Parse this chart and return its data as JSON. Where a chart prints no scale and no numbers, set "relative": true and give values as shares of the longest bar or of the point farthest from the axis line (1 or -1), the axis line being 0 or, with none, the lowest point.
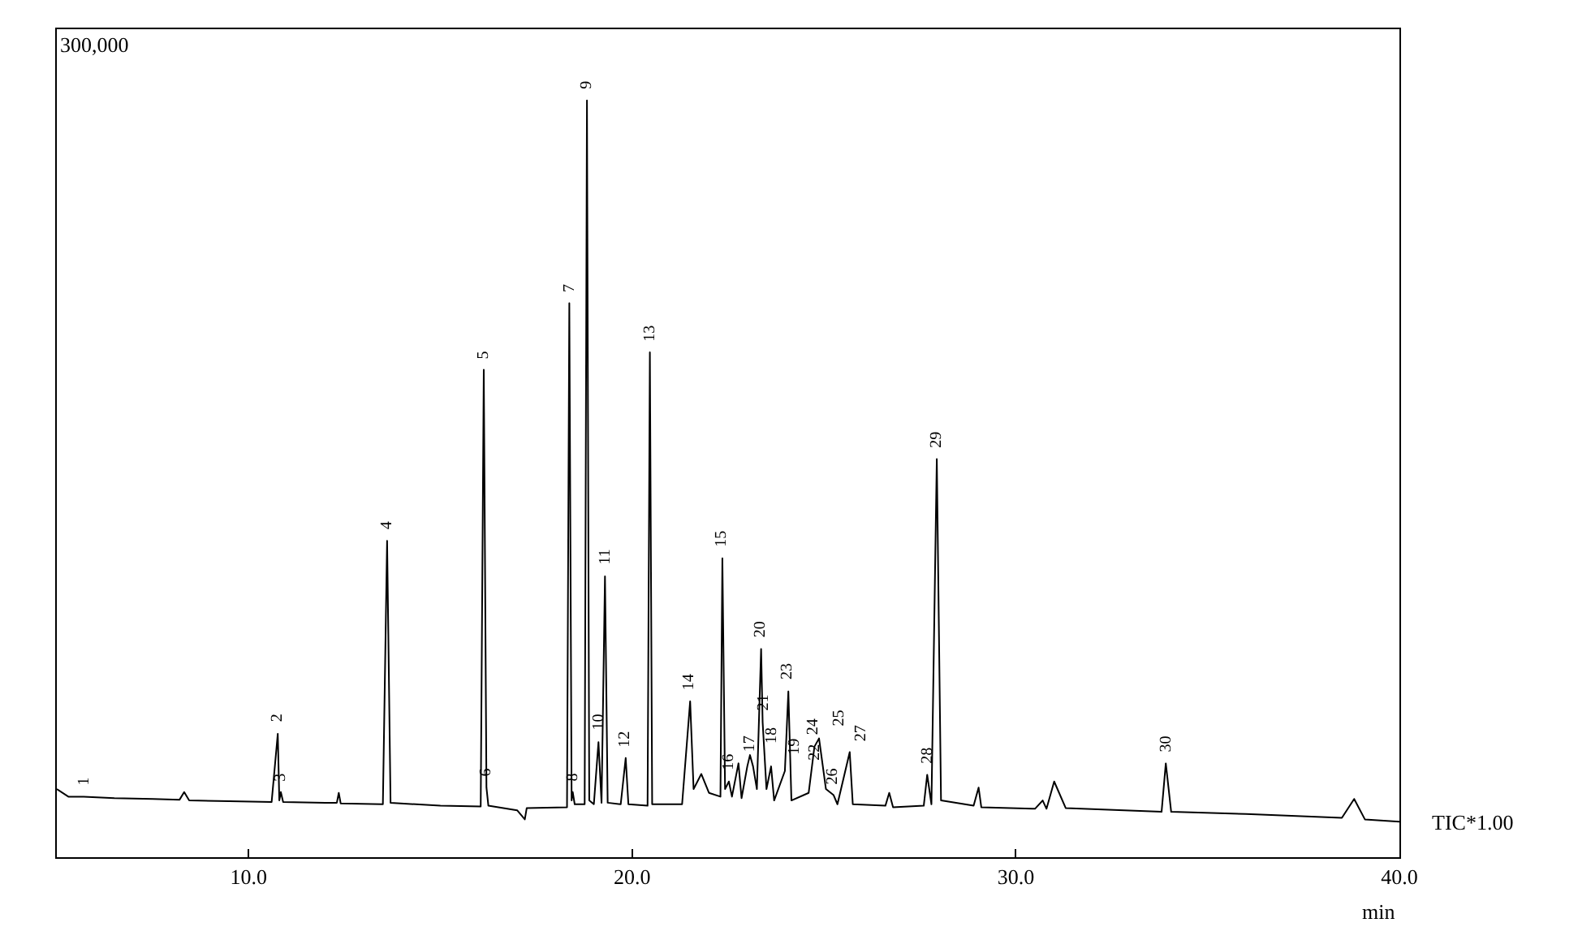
{
  "chart_data": {
    "type": "line",
    "relative": true,
    "xlabel": "min",
    "color": "#000000",
    "marker": "none",
    "line_style": "solid",
    "tick_labels": "x",
    "xlim": [
      5,
      40
    ],
    "xticks": [
      {
        "value": 10,
        "label": "10.0"
      },
      {
        "value": 20,
        "label": "20.0"
      },
      {
        "value": 30,
        "label": "30.0"
      },
      {
        "value": 40,
        "label": "40.0"
      }
    ],
    "x": [
      5.0,
      5.3,
      5.7,
      6.5,
      7.5,
      8.2,
      8.32,
      8.45,
      9.5,
      10.6,
      10.76,
      10.8,
      10.84,
      10.9,
      12.0,
      12.3,
      12.35,
      12.4,
      13.5,
      13.61,
      13.7,
      15.0,
      16.05,
      16.13,
      16.2,
      16.25,
      17.0,
      17.2,
      17.25,
      18.3,
      18.36,
      18.42,
      18.45,
      18.5,
      18.76,
      18.82,
      18.88,
      19.0,
      19.12,
      19.2,
      19.29,
      19.36,
      19.7,
      19.83,
      19.9,
      20.4,
      20.46,
      20.52,
      21.3,
      21.51,
      21.6,
      21.8,
      22.0,
      22.3,
      22.35,
      22.42,
      22.52,
      22.6,
      22.77,
      22.85,
      23.0,
      23.07,
      23.15,
      23.25,
      23.36,
      23.4,
      23.5,
      23.62,
      23.7,
      23.98,
      24.07,
      24.15,
      24.6,
      24.75,
      24.87,
      25.05,
      25.25,
      25.35,
      25.67,
      25.75,
      26.6,
      26.7,
      26.8,
      27.6,
      27.69,
      27.8,
      27.94,
      28.05,
      28.9,
      29.03,
      29.1,
      30.5,
      30.7,
      30.8,
      31.0,
      31.3,
      33.8,
      33.91,
      34.05,
      36.0,
      38.5,
      38.82,
      39.1,
      40.0
    ],
    "values": [
      0.09,
      0.08,
      0.08,
      0.078,
      0.077,
      0.076,
      0.086,
      0.075,
      0.074,
      0.073,
      0.163,
      0.075,
      0.086,
      0.073,
      0.072,
      0.072,
      0.085,
      0.071,
      0.07,
      0.418,
      0.072,
      0.068,
      0.067,
      0.644,
      0.092,
      0.068,
      0.062,
      0.05,
      0.065,
      0.066,
      0.732,
      0.075,
      0.086,
      0.07,
      0.07,
      1.0,
      0.075,
      0.07,
      0.152,
      0.072,
      0.371,
      0.072,
      0.07,
      0.131,
      0.07,
      0.068,
      0.667,
      0.07,
      0.07,
      0.206,
      0.09,
      0.11,
      0.085,
      0.08,
      0.395,
      0.09,
      0.1,
      0.08,
      0.124,
      0.078,
      0.12,
      0.135,
      0.12,
      0.09,
      0.275,
      0.178,
      0.09,
      0.12,
      0.075,
      0.114,
      0.219,
      0.075,
      0.085,
      0.146,
      0.157,
      0.09,
      0.082,
      0.07,
      0.139,
      0.07,
      0.068,
      0.085,
      0.066,
      0.068,
      0.109,
      0.07,
      0.526,
      0.075,
      0.068,
      0.092,
      0.066,
      0.064,
      0.075,
      0.064,
      0.1,
      0.065,
      0.06,
      0.124,
      0.06,
      0.057,
      0.052,
      0.077,
      0.05,
      0.047
    ],
    "annotations": [
      "300,000",
      "TIC*1.00",
      {
        "text": "1",
        "x": 5.7,
        "y": 0.08
      },
      {
        "text": "2",
        "x": 10.76,
        "y": 0.163
      },
      {
        "text": "3",
        "x": 10.84,
        "y": 0.086
      },
      {
        "text": "4",
        "x": 13.61,
        "y": 0.418
      },
      {
        "text": "5",
        "x": 16.13,
        "y": 0.644
      },
      {
        "text": "6",
        "x": 16.2,
        "y": 0.092
      },
      {
        "text": "7",
        "x": 18.36,
        "y": 0.732
      },
      {
        "text": "8",
        "x": 18.45,
        "y": 0.086
      },
      {
        "text": "9",
        "x": 18.82,
        "y": 1.0
      },
      {
        "text": "10",
        "x": 19.12,
        "y": 0.152
      },
      {
        "text": "11",
        "x": 19.29,
        "y": 0.371
      },
      {
        "text": "12",
        "x": 19.83,
        "y": 0.131
      },
      {
        "text": "13",
        "x": 20.46,
        "y": 0.667
      },
      {
        "text": "14",
        "x": 21.51,
        "y": 0.206
      },
      {
        "text": "15",
        "x": 22.35,
        "y": 0.395
      },
      {
        "text": "16",
        "x": 22.52,
        "y": 0.1
      },
      {
        "text": "17",
        "x": 22.77,
        "y": 0.124
      },
      {
        "text": "18",
        "x": 23.07,
        "y": 0.135
      },
      {
        "text": "19",
        "x": 23.15,
        "y": 0.12
      },
      {
        "text": "20",
        "x": 23.36,
        "y": 0.275
      },
      {
        "text": "21",
        "x": 23.4,
        "y": 0.178
      },
      {
        "text": "22",
        "x": 23.98,
        "y": 0.114
      },
      {
        "text": "23",
        "x": 24.07,
        "y": 0.219
      },
      {
        "text": "24",
        "x": 24.75,
        "y": 0.146
      },
      {
        "text": "25",
        "x": 24.87,
        "y": 0.157
      },
      {
        "text": "26",
        "x": 25.25,
        "y": 0.082
      },
      {
        "text": "27",
        "x": 25.67,
        "y": 0.139
      },
      {
        "text": "28",
        "x": 27.69,
        "y": 0.109
      },
      {
        "text": "29",
        "x": 27.94,
        "y": 0.526
      },
      {
        "text": "30",
        "x": 33.91,
        "y": 0.124
      }
    ]
  }
}
